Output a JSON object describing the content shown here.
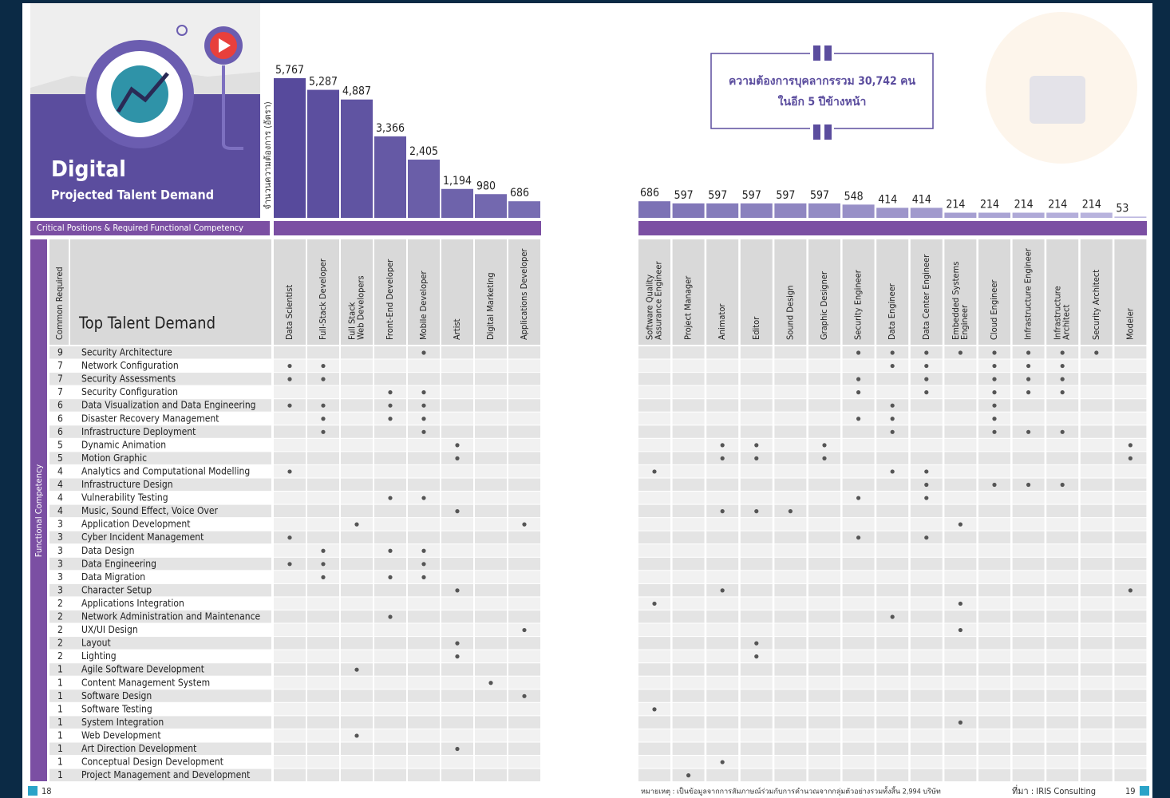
{
  "header": {
    "title": "Digital",
    "subtitle": "Projected Talent Demand"
  },
  "chart_data": {
    "type": "bar",
    "y_label": "จำนวนความต้องการ (อัตรา)",
    "categories": [
      [
        "Data Scientist"
      ],
      [
        "Full-Stack Developer"
      ],
      [
        "Full Stack",
        "Web Developers"
      ],
      [
        "Front-End Developer"
      ],
      [
        "Mobile Developer"
      ],
      [
        "Artist"
      ],
      [
        "Digital Marketing"
      ],
      [
        "Applications Developer"
      ],
      [
        "Software Quality",
        "Assurance Engineer"
      ],
      [
        "Project Manager"
      ],
      [
        "Animator"
      ],
      [
        "Editor"
      ],
      [
        "Sound Design"
      ],
      [
        "Graphic Designer"
      ],
      [
        "Security Engineer"
      ],
      [
        "Data Engineer"
      ],
      [
        "Data Center Engineer"
      ],
      [
        "Embedded Systems",
        "Engineer"
      ],
      [
        "Cloud Engineer"
      ],
      [
        "Infrastructure Engineer"
      ],
      [
        "Infrastructure",
        "Architect"
      ],
      [
        "Security Architect"
      ],
      [
        "Modeler"
      ]
    ],
    "values": [
      5767,
      5287,
      4887,
      3366,
      2405,
      1194,
      980,
      686,
      686,
      597,
      597,
      597,
      597,
      597,
      548,
      414,
      414,
      214,
      214,
      214,
      214,
      214,
      53
    ],
    "value_labels": [
      "5,767",
      "5,287",
      "4,887",
      "3,366",
      "2,405",
      "1,194",
      "980",
      "686",
      "686",
      "597",
      "597",
      "597",
      "597",
      "597",
      "548",
      "414",
      "414",
      "214",
      "214",
      "214",
      "214",
      "214",
      "53"
    ],
    "color_from": "#574a9c",
    "color_to": "#bdb8e0"
  },
  "summary": {
    "lines": [
      "ความต้องการบุคลากรรวม 30,742 คน",
      "ในอีก 5 ปีข้างหน้า"
    ]
  },
  "matrix": {
    "band_label": "Critical Positions & Required Functional Competency",
    "count_header": "Common Required",
    "skill_header": "Top Talent Demand",
    "group_label": "Functional Competency",
    "rows": [
      {
        "count": 9,
        "skill": "Security Architecture",
        "cells": [
          0,
          0,
          0,
          0,
          1,
          0,
          0,
          0,
          0,
          0,
          0,
          0,
          0,
          0,
          1,
          1,
          1,
          1,
          1,
          1,
          1,
          1,
          0
        ]
      },
      {
        "count": 7,
        "skill": "Network Configuration",
        "cells": [
          1,
          1,
          0,
          0,
          0,
          0,
          0,
          0,
          0,
          0,
          0,
          0,
          0,
          0,
          0,
          1,
          1,
          0,
          1,
          1,
          1,
          0,
          0
        ]
      },
      {
        "count": 7,
        "skill": "Security Assessments",
        "cells": [
          1,
          1,
          0,
          0,
          0,
          0,
          0,
          0,
          0,
          0,
          0,
          0,
          0,
          0,
          1,
          0,
          1,
          0,
          1,
          1,
          1,
          0,
          0
        ]
      },
      {
        "count": 7,
        "skill": "Security Configuration",
        "cells": [
          0,
          0,
          0,
          1,
          1,
          0,
          0,
          0,
          0,
          0,
          0,
          0,
          0,
          0,
          1,
          0,
          1,
          0,
          1,
          1,
          1,
          0,
          0
        ]
      },
      {
        "count": 6,
        "skill": "Data Visualization and Data Engineering",
        "cells": [
          1,
          1,
          0,
          1,
          1,
          0,
          0,
          0,
          0,
          0,
          0,
          0,
          0,
          0,
          0,
          1,
          0,
          0,
          1,
          0,
          0,
          0,
          0
        ]
      },
      {
        "count": 6,
        "skill": "Disaster Recovery Management",
        "cells": [
          0,
          1,
          0,
          1,
          1,
          0,
          0,
          0,
          0,
          0,
          0,
          0,
          0,
          0,
          1,
          1,
          0,
          0,
          1,
          0,
          0,
          0,
          0
        ]
      },
      {
        "count": 6,
        "skill": "Infrastructure Deployment",
        "cells": [
          0,
          1,
          0,
          0,
          1,
          0,
          0,
          0,
          0,
          0,
          0,
          0,
          0,
          0,
          0,
          1,
          0,
          0,
          1,
          1,
          1,
          0,
          0
        ]
      },
      {
        "count": 5,
        "skill": "Dynamic Animation",
        "cells": [
          0,
          0,
          0,
          0,
          0,
          1,
          0,
          0,
          0,
          0,
          1,
          1,
          0,
          1,
          0,
          0,
          0,
          0,
          0,
          0,
          0,
          0,
          1
        ]
      },
      {
        "count": 5,
        "skill": "Motion Graphic",
        "cells": [
          0,
          0,
          0,
          0,
          0,
          1,
          0,
          0,
          0,
          0,
          1,
          1,
          0,
          1,
          0,
          0,
          0,
          0,
          0,
          0,
          0,
          0,
          1
        ]
      },
      {
        "count": 4,
        "skill": "Analytics and Computational Modelling",
        "cells": [
          1,
          0,
          0,
          0,
          0,
          0,
          0,
          0,
          1,
          0,
          0,
          0,
          0,
          0,
          0,
          1,
          1,
          0,
          0,
          0,
          0,
          0,
          0
        ]
      },
      {
        "count": 4,
        "skill": "Infrastructure Design",
        "cells": [
          0,
          0,
          0,
          0,
          0,
          0,
          0,
          0,
          0,
          0,
          0,
          0,
          0,
          0,
          0,
          0,
          1,
          0,
          1,
          1,
          1,
          0,
          0
        ]
      },
      {
        "count": 4,
        "skill": "Vulnerability Testing",
        "cells": [
          0,
          0,
          0,
          1,
          1,
          0,
          0,
          0,
          0,
          0,
          0,
          0,
          0,
          0,
          1,
          0,
          1,
          0,
          0,
          0,
          0,
          0,
          0
        ]
      },
      {
        "count": 4,
        "skill": "Music, Sound Effect, Voice Over",
        "cells": [
          0,
          0,
          0,
          0,
          0,
          1,
          0,
          0,
          0,
          0,
          1,
          1,
          1,
          0,
          0,
          0,
          0,
          0,
          0,
          0,
          0,
          0,
          0
        ]
      },
      {
        "count": 3,
        "skill": "Application Development",
        "cells": [
          0,
          0,
          1,
          0,
          0,
          0,
          0,
          1,
          0,
          0,
          0,
          0,
          0,
          0,
          0,
          0,
          0,
          1,
          0,
          0,
          0,
          0,
          0
        ]
      },
      {
        "count": 3,
        "skill": "Cyber Incident Management",
        "cells": [
          1,
          0,
          0,
          0,
          0,
          0,
          0,
          0,
          0,
          0,
          0,
          0,
          0,
          0,
          1,
          0,
          1,
          0,
          0,
          0,
          0,
          0,
          0
        ]
      },
      {
        "count": 3,
        "skill": "Data Design",
        "cells": [
          0,
          1,
          0,
          1,
          1,
          0,
          0,
          0,
          0,
          0,
          0,
          0,
          0,
          0,
          0,
          0,
          0,
          0,
          0,
          0,
          0,
          0,
          0
        ]
      },
      {
        "count": 3,
        "skill": "Data Engineering",
        "cells": [
          1,
          1,
          0,
          0,
          1,
          0,
          0,
          0,
          0,
          0,
          0,
          0,
          0,
          0,
          0,
          0,
          0,
          0,
          0,
          0,
          0,
          0,
          0
        ]
      },
      {
        "count": 3,
        "skill": "Data Migration",
        "cells": [
          0,
          1,
          0,
          1,
          1,
          0,
          0,
          0,
          0,
          0,
          0,
          0,
          0,
          0,
          0,
          0,
          0,
          0,
          0,
          0,
          0,
          0,
          0
        ]
      },
      {
        "count": 3,
        "skill": "Character Setup",
        "cells": [
          0,
          0,
          0,
          0,
          0,
          1,
          0,
          0,
          0,
          0,
          1,
          0,
          0,
          0,
          0,
          0,
          0,
          0,
          0,
          0,
          0,
          0,
          1
        ]
      },
      {
        "count": 2,
        "skill": "Applications Integration",
        "cells": [
          0,
          0,
          0,
          0,
          0,
          0,
          0,
          0,
          1,
          0,
          0,
          0,
          0,
          0,
          0,
          0,
          0,
          1,
          0,
          0,
          0,
          0,
          0
        ]
      },
      {
        "count": 2,
        "skill": "Network Administration and Maintenance",
        "cells": [
          0,
          0,
          0,
          1,
          0,
          0,
          0,
          0,
          0,
          0,
          0,
          0,
          0,
          0,
          0,
          1,
          0,
          0,
          0,
          0,
          0,
          0,
          0
        ]
      },
      {
        "count": 2,
        "skill": "UX/UI Design",
        "cells": [
          0,
          0,
          0,
          0,
          0,
          0,
          0,
          1,
          0,
          0,
          0,
          0,
          0,
          0,
          0,
          0,
          0,
          1,
          0,
          0,
          0,
          0,
          0
        ]
      },
      {
        "count": 2,
        "skill": "Layout",
        "cells": [
          0,
          0,
          0,
          0,
          0,
          1,
          0,
          0,
          0,
          0,
          0,
          1,
          0,
          0,
          0,
          0,
          0,
          0,
          0,
          0,
          0,
          0,
          0
        ]
      },
      {
        "count": 2,
        "skill": "Lighting",
        "cells": [
          0,
          0,
          0,
          0,
          0,
          1,
          0,
          0,
          0,
          0,
          0,
          1,
          0,
          0,
          0,
          0,
          0,
          0,
          0,
          0,
          0,
          0,
          0
        ]
      },
      {
        "count": 1,
        "skill": "Agile Software Development",
        "cells": [
          0,
          0,
          1,
          0,
          0,
          0,
          0,
          0,
          0,
          0,
          0,
          0,
          0,
          0,
          0,
          0,
          0,
          0,
          0,
          0,
          0,
          0,
          0
        ]
      },
      {
        "count": 1,
        "skill": "Content Management System",
        "cells": [
          0,
          0,
          0,
          0,
          0,
          0,
          1,
          0,
          0,
          0,
          0,
          0,
          0,
          0,
          0,
          0,
          0,
          0,
          0,
          0,
          0,
          0,
          0
        ]
      },
      {
        "count": 1,
        "skill": "Software Design",
        "cells": [
          0,
          0,
          0,
          0,
          0,
          0,
          0,
          1,
          0,
          0,
          0,
          0,
          0,
          0,
          0,
          0,
          0,
          0,
          0,
          0,
          0,
          0,
          0
        ]
      },
      {
        "count": 1,
        "skill": "Software Testing",
        "cells": [
          0,
          0,
          0,
          0,
          0,
          0,
          0,
          0,
          1,
          0,
          0,
          0,
          0,
          0,
          0,
          0,
          0,
          0,
          0,
          0,
          0,
          0,
          0
        ]
      },
      {
        "count": 1,
        "skill": "System Integration",
        "cells": [
          0,
          0,
          0,
          0,
          0,
          0,
          0,
          0,
          0,
          0,
          0,
          0,
          0,
          0,
          0,
          0,
          0,
          1,
          0,
          0,
          0,
          0,
          0
        ]
      },
      {
        "count": 1,
        "skill": "Web Development",
        "cells": [
          0,
          0,
          1,
          0,
          0,
          0,
          0,
          0,
          0,
          0,
          0,
          0,
          0,
          0,
          0,
          0,
          0,
          0,
          0,
          0,
          0,
          0,
          0
        ]
      },
      {
        "count": 1,
        "skill": "Art Direction Development",
        "cells": [
          0,
          0,
          0,
          0,
          0,
          1,
          0,
          0,
          0,
          0,
          0,
          0,
          0,
          0,
          0,
          0,
          0,
          0,
          0,
          0,
          0,
          0,
          0
        ]
      },
      {
        "count": 1,
        "skill": "Conceptual Design Development",
        "cells": [
          0,
          0,
          0,
          0,
          0,
          0,
          0,
          0,
          0,
          0,
          1,
          0,
          0,
          0,
          0,
          0,
          0,
          0,
          0,
          0,
          0,
          0,
          0
        ]
      },
      {
        "count": 1,
        "skill": "Project Management and Development",
        "cells": [
          0,
          0,
          0,
          0,
          0,
          0,
          0,
          0,
          0,
          1,
          0,
          0,
          0,
          0,
          0,
          0,
          0,
          0,
          0,
          0,
          0,
          0,
          0
        ]
      }
    ]
  },
  "footer": {
    "left_page": 18,
    "note": "หมายเหตุ : เป็นข้อมูลจากการสัมภาษณ์ร่วมกับการคำนวณจากกลุ่มตัวอย่างรวมทั้งสิ้น 2,994 บริษัท",
    "source": "ที่มา : IRIS Consulting",
    "right_page": 19
  }
}
